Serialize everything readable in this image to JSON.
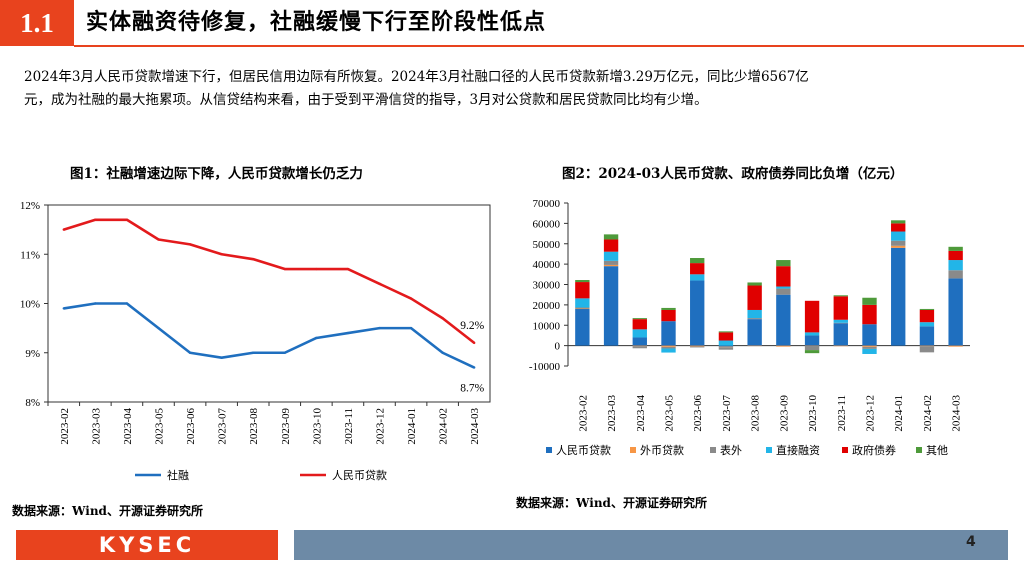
{
  "header": {
    "section_number": "1.1",
    "title": "实体融资待修复，社融缓慢下行至阶段性低点"
  },
  "intro": {
    "line1": "2024年3月人民币贷款增速下行，但居民信用边际有所恢复。2024年3月社融口径的人民币贷款新增3.29万亿元，同比少增6567亿",
    "line2": "元，成为社融的最大拖累项。从信贷结构来看，由于受到平滑信贷的指导，3月对公贷款和居民贷款同比均有少增。"
  },
  "colors": {
    "accent": "#e8431e",
    "footer_bar": "#6d8aa6"
  },
  "chart1": {
    "title": "图1：社融增速边际下降，人民币贷款增长仍乏力",
    "source": "数据来源：Wind、开源证券研究所"
  },
  "chart2": {
    "title": "图2：2024-03人民币贷款、政府债券同比负增（亿元）",
    "source": "数据来源：Wind、开源证券研究所"
  },
  "footer": {
    "logo_text": "KYSEC",
    "page_number": "4"
  },
  "chart_data": [
    {
      "type": "line",
      "x": [
        "2023-02",
        "2023-03",
        "2023-04",
        "2023-05",
        "2023-06",
        "2023-07",
        "2023-08",
        "2023-09",
        "2023-10",
        "2023-11",
        "2023-12",
        "2024-01",
        "2024-02",
        "2024-03"
      ],
      "ylim": [
        8,
        12
      ],
      "yticks": [
        "8%",
        "9%",
        "10%",
        "11%",
        "12%"
      ],
      "series": [
        {
          "name": "社融",
          "color": "#1f6fbf",
          "values": [
            9.9,
            10.0,
            10.0,
            9.5,
            9.0,
            8.9,
            9.0,
            9.0,
            9.3,
            9.4,
            9.5,
            9.5,
            9.0,
            8.7
          ],
          "end_label": "8.7%"
        },
        {
          "name": "人民币贷款",
          "color": "#e31a1c",
          "values": [
            11.5,
            11.7,
            11.7,
            11.3,
            11.2,
            11.0,
            10.9,
            10.7,
            10.7,
            10.7,
            10.4,
            10.1,
            9.7,
            9.2
          ],
          "end_label": "9.2%"
        }
      ],
      "grid": false,
      "legend": "bottom"
    },
    {
      "type": "bar",
      "stacked": true,
      "categories": [
        "2023-02",
        "2023-03",
        "2023-04",
        "2023-05",
        "2023-06",
        "2023-07",
        "2023-08",
        "2023-09",
        "2023-10",
        "2023-11",
        "2023-12",
        "2024-01",
        "2024-02",
        "2024-03"
      ],
      "ylim": [
        -10000,
        70000
      ],
      "yticks": [
        "-10000",
        "0",
        "10000",
        "20000",
        "30000",
        "40000",
        "50000",
        "60000",
        "70000"
      ],
      "series": [
        {
          "name": "人民币贷款",
          "color": "#1f6fbf",
          "values": [
            18000,
            39000,
            4000,
            12000,
            32000,
            -500,
            13000,
            25000,
            5000,
            11000,
            10500,
            48000,
            9500,
            33000
          ]
        },
        {
          "name": "外币贷款",
          "color": "#f79646",
          "values": [
            200,
            600,
            -300,
            -600,
            -400,
            -300,
            -200,
            -500,
            -200,
            -300,
            -600,
            1000,
            -300,
            -500
          ]
        },
        {
          "name": "表外",
          "color": "#8a8a8a",
          "values": [
            500,
            2000,
            -1000,
            -800,
            -500,
            -1200,
            500,
            3000,
            -2000,
            200,
            -1000,
            2500,
            -3000,
            4000
          ]
        },
        {
          "name": "直接融资",
          "color": "#22b5e8",
          "values": [
            4500,
            4500,
            4000,
            -2000,
            3000,
            2500,
            4000,
            1000,
            1500,
            1500,
            -2500,
            4500,
            2000,
            5000
          ]
        },
        {
          "name": "政府债券",
          "color": "#e00000",
          "values": [
            8000,
            6000,
            5000,
            5500,
            5500,
            4000,
            12000,
            10000,
            15500,
            11500,
            9500,
            4000,
            6000,
            4500
          ]
        },
        {
          "name": "其他",
          "color": "#4e9a3a",
          "values": [
            1000,
            2500,
            500,
            1000,
            2500,
            500,
            1500,
            3000,
            -1500,
            500,
            3500,
            1500,
            500,
            2000
          ]
        }
      ],
      "legend": "bottom",
      "grid": false
    }
  ]
}
